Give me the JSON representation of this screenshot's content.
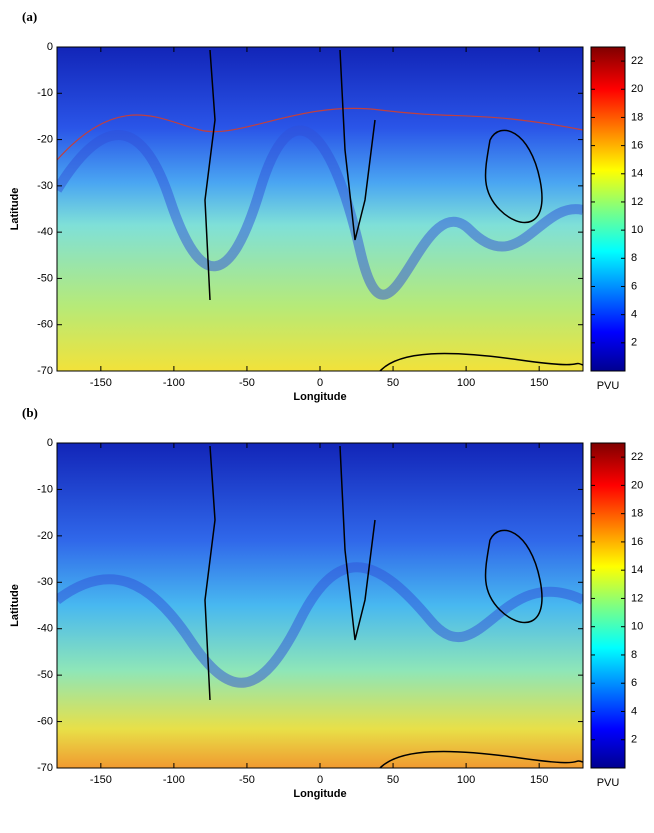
{
  "chart_data": [
    {
      "type": "heatmap",
      "panel": "(a)",
      "xlabel": "Longitude",
      "ylabel": "Latitude",
      "xlim": [
        -180,
        180
      ],
      "xticks": [
        -150,
        -100,
        -50,
        0,
        50,
        100,
        150
      ],
      "ylim": [
        -70,
        0
      ],
      "yticks": [
        0,
        -10,
        -20,
        -30,
        -40,
        -50,
        -60,
        -70
      ],
      "colorbar": {
        "label": "PVU",
        "clim": [
          0,
          23
        ],
        "ticks": [
          2,
          4,
          6,
          8,
          10,
          12,
          14,
          16,
          18,
          20,
          22
        ]
      }
    },
    {
      "type": "heatmap",
      "panel": "(b)",
      "xlabel": "Longitude",
      "ylabel": "Latitude",
      "xlim": [
        -180,
        180
      ],
      "xticks": [
        -150,
        -100,
        -50,
        0,
        50,
        100,
        150
      ],
      "ylim": [
        -70,
        0
      ],
      "yticks": [
        0,
        -10,
        -20,
        -30,
        -40,
        -50,
        -60,
        -70
      ],
      "colorbar": {
        "label": "PVU",
        "clim": [
          0,
          23
        ],
        "ticks": [
          2,
          4,
          6,
          8,
          10,
          12,
          14,
          16,
          18,
          20,
          22
        ]
      }
    }
  ]
}
